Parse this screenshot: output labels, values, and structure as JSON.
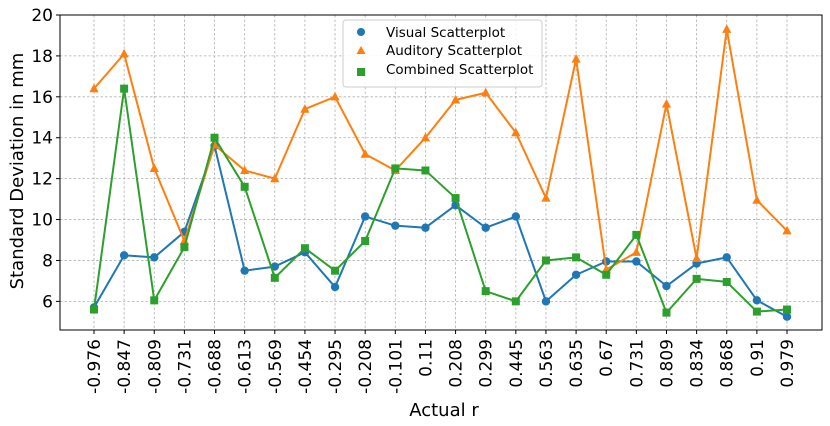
{
  "chart_data": {
    "type": "line",
    "title": "",
    "xlabel": "Actual r",
    "ylabel": "Standard Deviation in mm",
    "categories": [
      "-0.976",
      "-0.847",
      "-0.809",
      "-0.731",
      "-0.688",
      "-0.613",
      "-0.569",
      "-0.454",
      "-0.295",
      "-0.208",
      "-0.101",
      "0.11",
      "0.208",
      "0.299",
      "0.445",
      "0.563",
      "0.635",
      "0.67",
      "0.731",
      "0.809",
      "0.834",
      "0.868",
      "0.91",
      "0.979"
    ],
    "ylim": [
      4.6,
      20
    ],
    "yticks": [
      6,
      8,
      10,
      12,
      14,
      16,
      18,
      20
    ],
    "grid": true,
    "legend_position": "top-center",
    "series": [
      {
        "name": "Visual Scatterplot",
        "color": "#1f77b4",
        "marker": "circle",
        "values": [
          5.7,
          8.25,
          8.15,
          9.4,
          13.6,
          7.5,
          7.7,
          8.4,
          6.7,
          10.15,
          9.7,
          9.6,
          10.7,
          9.6,
          10.15,
          6.0,
          7.3,
          7.95,
          7.95,
          6.75,
          7.85,
          8.15,
          6.05,
          5.25
        ]
      },
      {
        "name": "Auditory Scatterplot",
        "color": "#ff7f0e",
        "marker": "triangle",
        "values": [
          16.4,
          18.1,
          12.5,
          8.95,
          13.65,
          12.4,
          12.0,
          15.4,
          16.0,
          13.2,
          12.4,
          14.0,
          15.85,
          16.2,
          14.25,
          11.05,
          17.85,
          7.55,
          8.4,
          15.65,
          8.1,
          19.3,
          10.95,
          9.45
        ]
      },
      {
        "name": "Combined Scatterplot",
        "color": "#2ca02c",
        "marker": "square",
        "values": [
          5.6,
          16.4,
          6.05,
          8.65,
          14.0,
          11.6,
          7.15,
          8.6,
          7.5,
          8.95,
          12.5,
          12.4,
          11.05,
          6.5,
          6.0,
          8.0,
          8.15,
          7.3,
          9.25,
          5.45,
          7.1,
          6.95,
          5.5,
          5.6
        ]
      }
    ]
  }
}
